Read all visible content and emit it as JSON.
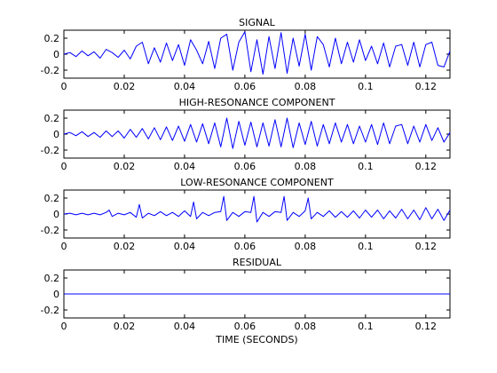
{
  "chart_data": [
    {
      "type": "line",
      "title": "SIGNAL",
      "xlabel": "",
      "xlim": [
        0,
        0.128
      ],
      "ylim": [
        -0.3,
        0.3
      ],
      "xticks": [
        0,
        0.02,
        0.04,
        0.06,
        0.08,
        0.1,
        0.12
      ],
      "xtick_labels": [
        "0",
        "0.02",
        "0.04",
        "0.06",
        "0.08",
        "0.1",
        "0.12"
      ],
      "yticks": [
        0.2,
        0,
        -0.2
      ],
      "ytick_labels": [
        "0.2",
        "0",
        "-0.2"
      ],
      "series": [
        {
          "color": "#0000ff",
          "x": [
            0,
            0.002,
            0.004,
            0.006,
            0.008,
            0.01,
            0.012,
            0.014,
            0.016,
            0.018,
            0.02,
            0.022,
            0.024,
            0.026,
            0.028,
            0.03,
            0.032,
            0.034,
            0.036,
            0.038,
            0.04,
            0.042,
            0.044,
            0.046,
            0.048,
            0.05,
            0.052,
            0.054,
            0.056,
            0.058,
            0.06,
            0.062,
            0.064,
            0.066,
            0.068,
            0.07,
            0.072,
            0.074,
            0.076,
            0.078,
            0.08,
            0.082,
            0.084,
            0.086,
            0.088,
            0.09,
            0.092,
            0.094,
            0.096,
            0.098,
            0.1,
            0.102,
            0.104,
            0.106,
            0.108,
            0.11,
            0.112,
            0.114,
            0.116,
            0.118,
            0.12,
            0.122,
            0.124,
            0.126,
            0.128
          ],
          "y": [
            0,
            0.02,
            -0.03,
            0.04,
            -0.02,
            0.03,
            -0.05,
            0.06,
            0.02,
            -0.04,
            0.05,
            -0.06,
            0.1,
            0.15,
            -0.12,
            0.08,
            -0.1,
            0.14,
            -0.08,
            0.12,
            -0.14,
            0.18,
            0.05,
            -0.12,
            0.16,
            -0.18,
            0.2,
            0.25,
            -0.2,
            0.15,
            0.28,
            -0.22,
            0.18,
            -0.25,
            0.22,
            -0.18,
            0.27,
            -0.24,
            0.2,
            -0.15,
            0.25,
            -0.2,
            0.22,
            0.12,
            -0.16,
            0.2,
            -0.12,
            0.15,
            -0.1,
            0.18,
            -0.08,
            0.1,
            -0.12,
            0.14,
            -0.16,
            0.1,
            0.12,
            -0.14,
            0.15,
            -0.16,
            0.12,
            0.15,
            -0.14,
            -0.16,
            0.04
          ]
        }
      ]
    },
    {
      "type": "line",
      "title": "HIGH-RESONANCE COMPONENT",
      "xlabel": "",
      "xlim": [
        0,
        0.128
      ],
      "ylim": [
        -0.3,
        0.3
      ],
      "xticks": [
        0,
        0.02,
        0.04,
        0.06,
        0.08,
        0.1,
        0.12
      ],
      "xtick_labels": [
        "0",
        "0.02",
        "0.04",
        "0.06",
        "0.08",
        "0.1",
        "0.12"
      ],
      "yticks": [
        0.2,
        0,
        -0.2
      ],
      "ytick_labels": [
        "0.2",
        "0",
        "-0.2"
      ],
      "series": [
        {
          "color": "#0000ff",
          "x": [
            0,
            0.002,
            0.004,
            0.006,
            0.008,
            0.01,
            0.012,
            0.014,
            0.016,
            0.018,
            0.02,
            0.022,
            0.024,
            0.026,
            0.028,
            0.03,
            0.032,
            0.034,
            0.036,
            0.038,
            0.04,
            0.042,
            0.044,
            0.046,
            0.048,
            0.05,
            0.052,
            0.054,
            0.056,
            0.058,
            0.06,
            0.062,
            0.064,
            0.066,
            0.068,
            0.07,
            0.072,
            0.074,
            0.076,
            0.078,
            0.08,
            0.082,
            0.084,
            0.086,
            0.088,
            0.09,
            0.092,
            0.094,
            0.096,
            0.098,
            0.1,
            0.102,
            0.104,
            0.106,
            0.108,
            0.11,
            0.112,
            0.114,
            0.116,
            0.118,
            0.12,
            0.122,
            0.124,
            0.126,
            0.128
          ],
          "y": [
            0,
            0.02,
            -0.02,
            0.03,
            -0.03,
            0.02,
            -0.04,
            0.04,
            -0.03,
            0.04,
            -0.05,
            0.06,
            -0.04,
            0.07,
            -0.06,
            0.08,
            -0.07,
            0.09,
            -0.08,
            0.1,
            -0.09,
            0.12,
            -0.1,
            0.13,
            -0.12,
            0.14,
            -0.16,
            0.2,
            -0.18,
            0.16,
            -0.14,
            0.15,
            -0.16,
            0.14,
            -0.15,
            0.18,
            -0.16,
            0.2,
            -0.17,
            0.14,
            -0.13,
            0.16,
            -0.15,
            0.12,
            -0.12,
            0.14,
            -0.1,
            0.12,
            -0.12,
            0.1,
            -0.1,
            0.12,
            -0.13,
            0.14,
            -0.12,
            0.1,
            0.12,
            -0.12,
            0.1,
            -0.1,
            0.12,
            -0.08,
            0.08,
            -0.1,
            0.02
          ]
        }
      ]
    },
    {
      "type": "line",
      "title": "LOW-RESONANCE COMPONENT",
      "xlabel": "",
      "xlim": [
        0,
        0.128
      ],
      "ylim": [
        -0.3,
        0.3
      ],
      "xticks": [
        0,
        0.02,
        0.04,
        0.06,
        0.08,
        0.1,
        0.12
      ],
      "xtick_labels": [
        "0",
        "0.02",
        "0.04",
        "0.06",
        "0.08",
        "0.1",
        "0.12"
      ],
      "yticks": [
        0.2,
        0,
        -0.2
      ],
      "ytick_labels": [
        "0.2",
        "0",
        "-0.2"
      ],
      "series": [
        {
          "color": "#0000ff",
          "x": [
            0,
            0.002,
            0.004,
            0.006,
            0.008,
            0.01,
            0.012,
            0.014,
            0.015,
            0.016,
            0.018,
            0.02,
            0.022,
            0.024,
            0.025,
            0.026,
            0.028,
            0.03,
            0.032,
            0.034,
            0.036,
            0.038,
            0.04,
            0.042,
            0.043,
            0.044,
            0.046,
            0.048,
            0.05,
            0.052,
            0.053,
            0.054,
            0.056,
            0.058,
            0.06,
            0.062,
            0.063,
            0.064,
            0.066,
            0.068,
            0.07,
            0.072,
            0.073,
            0.074,
            0.076,
            0.078,
            0.08,
            0.081,
            0.082,
            0.084,
            0.086,
            0.088,
            0.09,
            0.092,
            0.094,
            0.096,
            0.098,
            0.1,
            0.102,
            0.104,
            0.106,
            0.108,
            0.11,
            0.112,
            0.114,
            0.116,
            0.118,
            0.12,
            0.122,
            0.124,
            0.126,
            0.128
          ],
          "y": [
            0,
            0.01,
            -0.01,
            0.01,
            -0.01,
            0.01,
            -0.01,
            0.02,
            0.05,
            -0.03,
            0.01,
            -0.01,
            0.02,
            -0.04,
            0.12,
            -0.05,
            0.01,
            -0.02,
            0.03,
            -0.02,
            0.02,
            -0.03,
            0.04,
            -0.03,
            0.15,
            -0.06,
            0.02,
            -0.02,
            0.02,
            0.03,
            0.22,
            -0.08,
            0.02,
            -0.03,
            0.03,
            0.02,
            0.22,
            -0.1,
            0.02,
            -0.03,
            0.03,
            0.02,
            0.22,
            -0.08,
            0.02,
            -0.03,
            0.04,
            0.2,
            -0.06,
            0.02,
            -0.03,
            0.04,
            -0.04,
            0.03,
            -0.04,
            0.04,
            -0.05,
            0.05,
            -0.04,
            0.05,
            -0.06,
            0.04,
            -0.05,
            0.06,
            -0.06,
            0.05,
            -0.07,
            0.08,
            -0.06,
            0.06,
            -0.08,
            0.05
          ]
        }
      ]
    },
    {
      "type": "line",
      "title": "RESIDUAL",
      "xlabel": "TIME (SECONDS)",
      "xlim": [
        0,
        0.128
      ],
      "ylim": [
        -0.3,
        0.3
      ],
      "xticks": [
        0,
        0.02,
        0.04,
        0.06,
        0.08,
        0.1,
        0.12
      ],
      "xtick_labels": [
        "0",
        "0.02",
        "0.04",
        "0.06",
        "0.08",
        "0.1",
        "0.12"
      ],
      "yticks": [
        0.2,
        0,
        -0.2
      ],
      "ytick_labels": [
        "0.2",
        "0",
        "-0.2"
      ],
      "series": [
        {
          "color": "#0000ff",
          "x": [
            0,
            0.128
          ],
          "y": [
            0,
            0
          ]
        }
      ]
    }
  ]
}
